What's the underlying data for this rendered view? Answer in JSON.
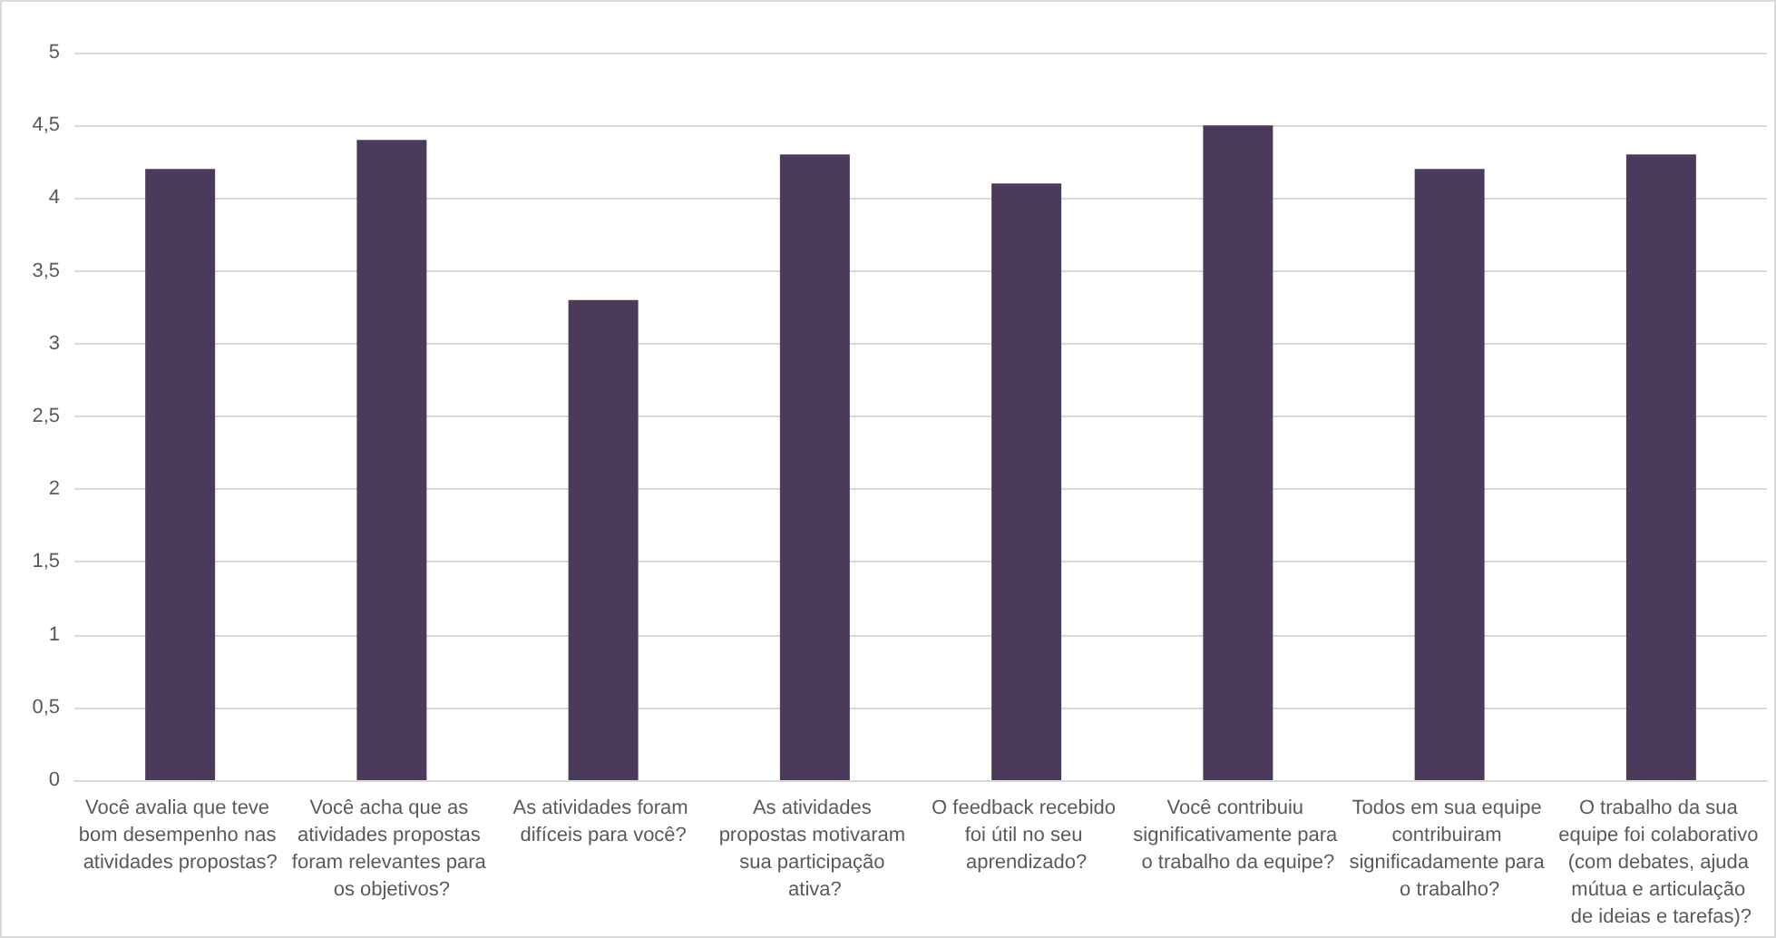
{
  "chart_data": {
    "type": "bar",
    "categories": [
      "Você avalia que teve bom desempenho nas atividades propostas?",
      "Você acha que as atividades propostas foram relevantes para os objetivos?",
      "As atividades foram difíceis para você?",
      "As atividades propostas motivaram sua participação ativa?",
      "O feedback recebido foi útil no seu aprendizado?",
      "Você contribuiu significativamente para o trabalho da equipe?",
      "Todos em sua equipe contribuiram significadamente para o trabalho?",
      "O trabalho da sua equipe foi colaborativo (com debates, ajuda mútua e articulação de ideias e tarefas)?"
    ],
    "values": [
      4.2,
      4.4,
      3.3,
      4.3,
      4.1,
      4.5,
      4.2,
      4.3
    ],
    "color": "#4b3a5a",
    "ylim": [
      0,
      5
    ],
    "yticks": [
      0,
      {
        "value": 0.5,
        "label": "0,5"
      },
      1,
      {
        "value": 1.5,
        "label": "1,5"
      },
      2,
      {
        "value": 2.5,
        "label": "2,5"
      },
      3,
      {
        "value": 3.5,
        "label": "3,5"
      },
      4,
      {
        "value": 4.5,
        "label": "4,5"
      },
      5
    ],
    "grid": true
  }
}
